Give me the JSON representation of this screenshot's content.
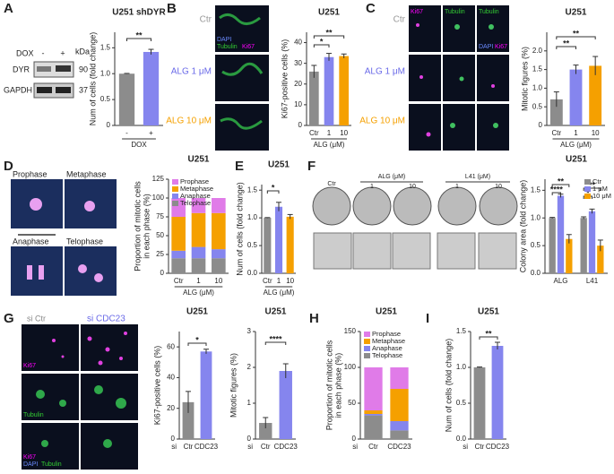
{
  "panel_letters": [
    "A",
    "B",
    "C",
    "D",
    "E",
    "F",
    "G",
    "H",
    "I"
  ],
  "images": {
    "A": [
      "DOX",
      "-",
      "+",
      "kDa",
      "DYR",
      "90",
      "GAPDH",
      "37"
    ],
    "B": [
      "Ctr",
      "ALG 1 μM",
      "ALG 10 μM",
      "DAPI",
      "Tubulin",
      "Ki67"
    ],
    "C": [
      "Ki67",
      "Tubulin",
      "Tubulin",
      "DAPI",
      "Ki67",
      "Ctr",
      "ALG 1 μM",
      "ALG 10 μM"
    ],
    "D": [
      "Prophase",
      "Metaphase",
      "Anaphase",
      "Telophase"
    ],
    "F": [
      "Ctr",
      "ALG (μM)",
      "1",
      "10",
      "L41 (μM)",
      "1",
      "10"
    ],
    "G": [
      "si Ctr",
      "si CDC23",
      "Ki67",
      "Tubulin",
      "Ki67",
      "DAPI",
      "Tubulin"
    ]
  },
  "chart_data": [
    {
      "type": "bar",
      "title": "U251 shDYR",
      "ylabel": [
        "Num of cells (fold change)"
      ],
      "xlabel": "DOX",
      "categories": [
        "-",
        "+"
      ],
      "values": [
        1.0,
        1.42
      ],
      "errors": [
        0.005,
        0.05
      ],
      "colors": [
        "#8c8c8c",
        "#8585ee"
      ],
      "ylim": [
        0,
        1.8
      ],
      "yticks": [
        0,
        0.5,
        {
          "value": 1,
          "label": "1.0"
        },
        1.5
      ],
      "annotations": [
        "**"
      ]
    },
    {
      "type": "bar",
      "title": "U251",
      "ylabel": [
        "Ki67-positive cells (%)"
      ],
      "xlabel": "ALG (μM)",
      "categories": [
        "Ctr",
        "1",
        "10"
      ],
      "values": [
        26,
        33,
        33.5
      ],
      "errors": [
        3,
        1.8,
        1
      ],
      "colors": [
        "#8c8c8c",
        "#8585ee",
        "#f5a000"
      ],
      "ylim": [
        0,
        45
      ],
      "yticks": [
        0,
        10,
        20,
        30,
        40
      ],
      "annotations": [
        "*",
        "**"
      ]
    },
    {
      "type": "bar",
      "title": "U251",
      "ylabel": [
        "Mitotic figures (%)"
      ],
      "xlabel": "ALG (μM)",
      "categories": [
        "Ctr",
        "1",
        "10"
      ],
      "values": [
        0.7,
        1.5,
        1.6
      ],
      "errors": [
        0.2,
        0.12,
        0.25
      ],
      "colors": [
        "#8c8c8c",
        "#8585ee",
        "#f5a000"
      ],
      "ylim": [
        0,
        2.5
      ],
      "yticks": [
        0,
        0.5,
        {
          "value": 1,
          "label": "1.0"
        },
        1.5,
        {
          "value": 2,
          "label": "2.0"
        }
      ],
      "annotations": [
        "**",
        "**"
      ]
    },
    {
      "type": "stacked",
      "title": "U251",
      "ylabel": [
        "Proportion of mitotic cells",
        "in each phase (%)"
      ],
      "xlabel": "ALG (μM)",
      "categories": [
        "Ctr",
        "1",
        "10"
      ],
      "series": [
        {
          "name": "Prophase",
          "color": "#e07be8",
          "values": [
            25,
            20,
            20
          ]
        },
        {
          "name": "Metaphase",
          "color": "#f5a000",
          "values": [
            45,
            45,
            48
          ]
        },
        {
          "name": "Anaphase",
          "color": "#8585ee",
          "values": [
            10,
            15,
            12
          ]
        },
        {
          "name": "Telophase",
          "color": "#8c8c8c",
          "values": [
            20,
            20,
            20
          ]
        }
      ],
      "ylim": [
        0,
        125
      ],
      "yticks": [
        0,
        25,
        50,
        75,
        100,
        125
      ],
      "annotations": []
    },
    {
      "type": "bar",
      "title": "U251",
      "ylabel": [
        "Num of cells (fold change)"
      ],
      "xlabel": "ALG (μM)",
      "categories": [
        "Ctr",
        "1",
        "10"
      ],
      "values": [
        1.0,
        1.2,
        1.02
      ],
      "errors": [
        0.005,
        0.08,
        0.04
      ],
      "colors": [
        "#8c8c8c",
        "#8585ee",
        "#f5a000"
      ],
      "ylim": [
        0,
        1.6
      ],
      "yticks": [
        {
          "value": 0,
          "label": "0.0"
        },
        0.5,
        {
          "value": 1,
          "label": "1.0"
        },
        1.5
      ],
      "annotations": [
        "*"
      ]
    },
    {
      "type": "grouped",
      "title": "U251",
      "ylabel": [
        "Colony area (fold change)"
      ],
      "categories": [
        "ALG",
        "L41"
      ],
      "series": [
        {
          "name": "Ctr",
          "color": "#8c8c8c",
          "values": [
            1.0,
            1.0
          ],
          "errors": [
            0.01,
            0.02
          ]
        },
        {
          "name": "1 μM",
          "color": "#8585ee",
          "values": [
            1.4,
            1.12
          ],
          "errors": [
            0.03,
            0.04
          ]
        },
        {
          "name": "10 μM",
          "color": "#f5a000",
          "values": [
            0.62,
            0.5
          ],
          "errors": [
            0.08,
            0.1
          ]
        }
      ],
      "ylim": [
        0,
        1.7
      ],
      "yticks": [
        {
          "value": 0,
          "label": "0.0"
        },
        0.5,
        {
          "value": 1,
          "label": "1.0"
        },
        1.5
      ],
      "annotations": [
        "**",
        "****",
        "*",
        "**"
      ]
    },
    {
      "type": "bar",
      "title": "U251",
      "ylabel": [
        "Ki67-positive cells (%)"
      ],
      "x_prefix": "si",
      "categories": [
        "Ctr",
        "CDC23"
      ],
      "values": [
        24,
        57
      ],
      "errors": [
        7,
        1.5
      ],
      "colors": [
        "#8c8c8c",
        "#8585ee"
      ],
      "ylim": [
        0,
        70
      ],
      "yticks": [
        0,
        20,
        40,
        60
      ],
      "annotations": [
        "*"
      ]
    },
    {
      "type": "bar",
      "title": "U251",
      "ylabel": [
        "Mitotic figures (%)"
      ],
      "x_prefix": "si",
      "categories": [
        "Ctr",
        "CDC23"
      ],
      "values": [
        0.45,
        1.9
      ],
      "errors": [
        0.15,
        0.2
      ],
      "colors": [
        "#8c8c8c",
        "#8585ee"
      ],
      "ylim": [
        0,
        3
      ],
      "yticks": [
        0,
        1,
        2,
        3
      ],
      "annotations": [
        "****"
      ]
    },
    {
      "type": "stacked",
      "title": "U251",
      "ylabel": [
        "Proportion of mitotic cells",
        "in each phase (%)"
      ],
      "x_prefix": "si",
      "categories": [
        "Ctr",
        "CDC23"
      ],
      "series": [
        {
          "name": "Prophase",
          "color": "#e07be8",
          "values": [
            60,
            30
          ]
        },
        {
          "name": "Metaphase",
          "color": "#f5a000",
          "values": [
            5,
            45
          ]
        },
        {
          "name": "Anaphase",
          "color": "#8585ee",
          "values": [
            2,
            13
          ]
        },
        {
          "name": "Telophase",
          "color": "#8c8c8c",
          "values": [
            33,
            12
          ]
        }
      ],
      "ylim": [
        0,
        150
      ],
      "yticks": [
        0,
        50,
        100,
        150
      ],
      "annotations": []
    },
    {
      "type": "bar",
      "title": "U251",
      "ylabel": [
        "Num of cells (fold change)"
      ],
      "x_prefix": "si",
      "categories": [
        "Ctr",
        "CDC23"
      ],
      "values": [
        1.0,
        1.3
      ],
      "errors": [
        0.005,
        0.05
      ],
      "colors": [
        "#8c8c8c",
        "#8585ee"
      ],
      "ylim": [
        0,
        1.5
      ],
      "yticks": [
        {
          "value": 0,
          "label": "0.0"
        },
        0.5,
        {
          "value": 1,
          "label": "1.0"
        },
        1.5
      ],
      "annotations": [
        "**"
      ]
    }
  ]
}
